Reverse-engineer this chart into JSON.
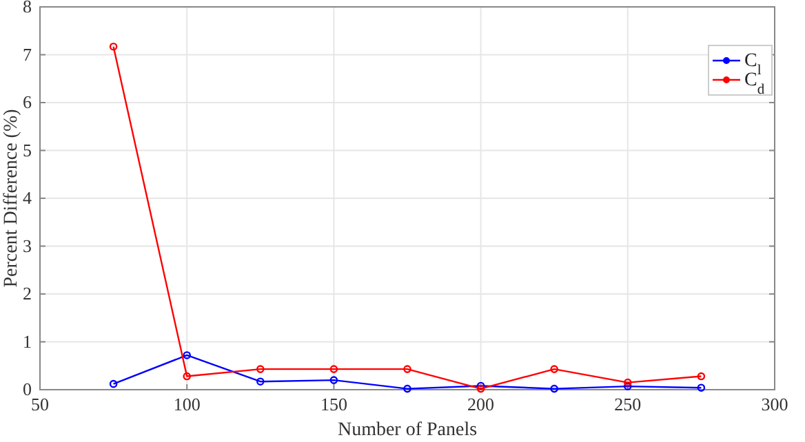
{
  "chart_data": {
    "type": "line",
    "xlabel": "Number of Panels",
    "ylabel": "Percent Difference (%)",
    "x": [
      75,
      100,
      125,
      150,
      175,
      200,
      225,
      250,
      275
    ],
    "series": [
      {
        "name": "C$_{l}$",
        "color": "#0000ff",
        "values": [
          0.12,
          0.72,
          0.17,
          0.2,
          0.02,
          0.08,
          0.02,
          0.07,
          0.04
        ]
      },
      {
        "name": "C$_{d}$",
        "color": "#ff0000",
        "values": [
          7.17,
          0.28,
          0.43,
          0.43,
          0.43,
          0.02,
          0.43,
          0.15,
          0.28
        ]
      }
    ],
    "xlim": [
      50,
      300
    ],
    "xticks": [
      50,
      100,
      150,
      200,
      250,
      300
    ],
    "ylim": [
      0,
      8
    ],
    "yticks": [
      0,
      1,
      2,
      3,
      4,
      5,
      6,
      7,
      8
    ],
    "grid": true,
    "legend": "top right",
    "marker": "circle",
    "line_style": "solid"
  }
}
